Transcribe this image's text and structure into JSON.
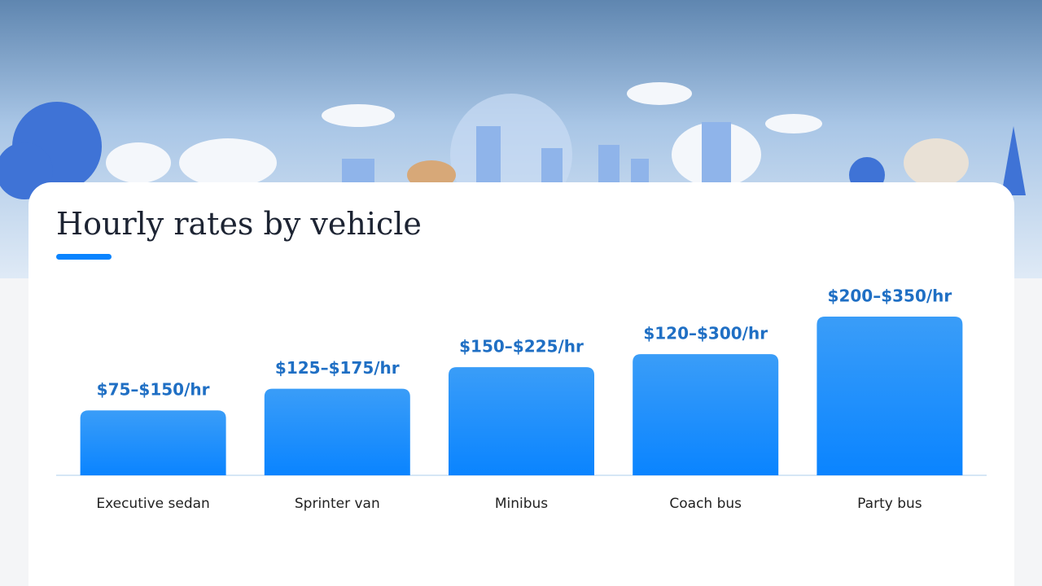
{
  "chart_data": {
    "type": "range-bar",
    "title": "Hourly rates by vehicle",
    "categories": [
      "Executive sedan",
      "Sprinter van",
      "Minibus",
      "Coach bus",
      "Party bus"
    ],
    "low": [
      75,
      125,
      150,
      120,
      200
    ],
    "high": [
      150,
      175,
      225,
      300,
      350
    ],
    "value_labels": [
      "$75–$150/hr",
      "$125–$175/hr",
      "$150–$225/hr",
      "$120–$300/hr",
      "$200–$350/hr"
    ],
    "color": "#0a84ff"
  }
}
